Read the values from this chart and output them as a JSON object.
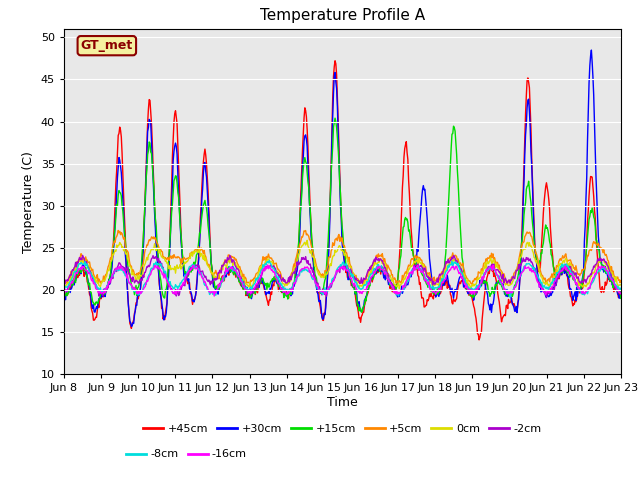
{
  "title": "Temperature Profile A",
  "xlabel": "Time",
  "ylabel": "Temperature (C)",
  "ylim": [
    10,
    51
  ],
  "yticks": [
    10,
    15,
    20,
    25,
    30,
    35,
    40,
    45,
    50
  ],
  "xtick_labels": [
    "Jun 8",
    "Jun 9",
    "Jun 10",
    "Jun 11",
    "Jun 12",
    "Jun 13",
    "Jun 14",
    "Jun 15",
    "Jun 16",
    "Jun 17",
    "Jun 18",
    "Jun 19",
    "Jun 20",
    "Jun 21",
    "Jun 22",
    "Jun 23"
  ],
  "background_color": "#e8e8e8",
  "legend_box_facecolor": "#f5f0a0",
  "legend_box_edge": "#8b0000",
  "legend_text": "GT_met",
  "legend_text_color": "#8b0000",
  "series_colors": {
    "+45cm": "#ff0000",
    "+30cm": "#0000ff",
    "+15cm": "#00dd00",
    "+5cm": "#ff8800",
    "0cm": "#dddd00",
    "-2cm": "#aa00cc",
    "-8cm": "#00dddd",
    "-16cm": "#ff00ff"
  },
  "figsize": [
    6.4,
    4.8
  ],
  "dpi": 100
}
